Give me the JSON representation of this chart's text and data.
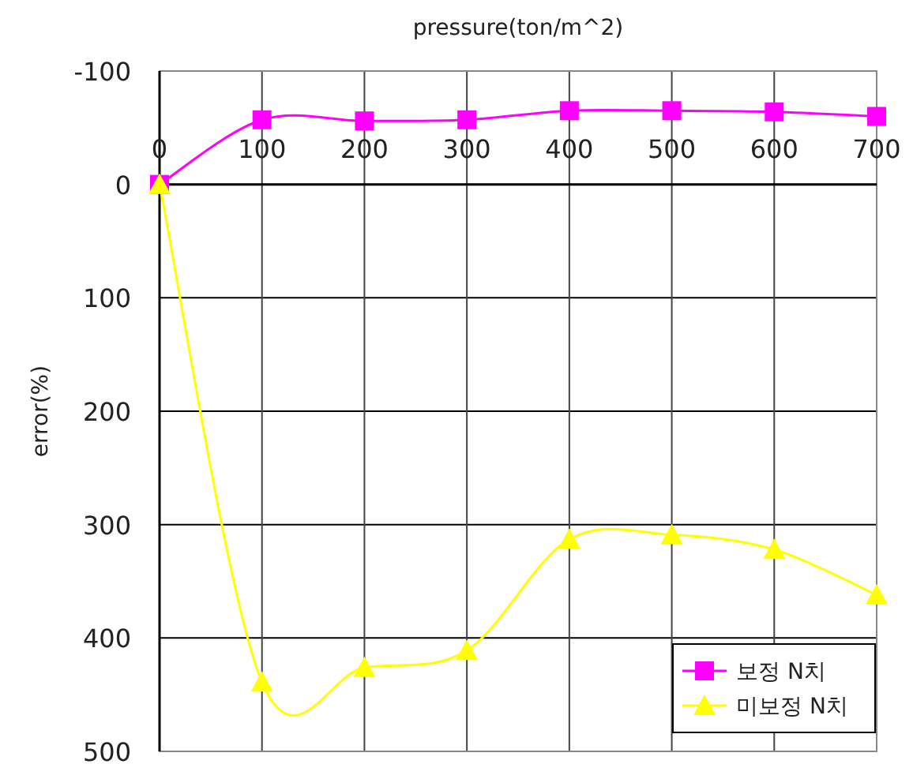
{
  "chart_data": {
    "type": "line",
    "xlabel": "pressure(ton/m^2)",
    "ylabel": "error(%)",
    "x": [
      0,
      100,
      200,
      300,
      400,
      500,
      600,
      700
    ],
    "series": [
      {
        "name": "보정 N치",
        "color": "#ff00ff",
        "marker": "square",
        "values": [
          0,
          -57,
          -56,
          -57,
          -65,
          -65,
          -64,
          -60
        ]
      },
      {
        "name": "미보정 N치",
        "color": "#ffff00",
        "marker": "triangle",
        "values": [
          0,
          439,
          426,
          411,
          313,
          309,
          322,
          362
        ]
      }
    ],
    "xlim": [
      0,
      700
    ],
    "xticks": [
      0,
      100,
      200,
      300,
      400,
      500,
      600,
      700
    ],
    "ylim": [
      500,
      -100
    ],
    "yticks": [
      -100,
      0,
      100,
      200,
      300,
      400,
      500
    ],
    "grid": true,
    "legend": "bottom right",
    "line_style": "solid"
  }
}
